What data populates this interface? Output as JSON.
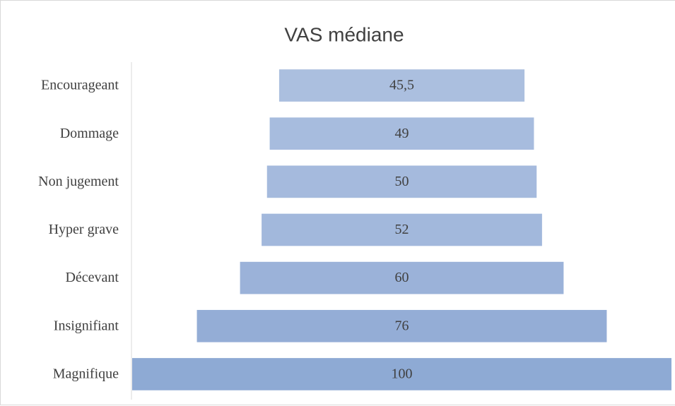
{
  "chart_data": {
    "type": "funnel",
    "title": "VAS médiane",
    "categories": [
      "Encourageant",
      "Dommage",
      "Non jugement",
      "Hyper grave",
      "Décevant",
      "Insignifiant",
      "Magnifique"
    ],
    "values": [
      45.5,
      49,
      50,
      52,
      60,
      76,
      100
    ],
    "value_labels": [
      "45,5",
      "49",
      "50",
      "52",
      "60",
      "76",
      "100"
    ],
    "colors": [
      "#abbfdf",
      "#a7bcde",
      "#a5badd",
      "#a2b8dc",
      "#9bb2d9",
      "#94add6",
      "#8eaad4"
    ]
  }
}
